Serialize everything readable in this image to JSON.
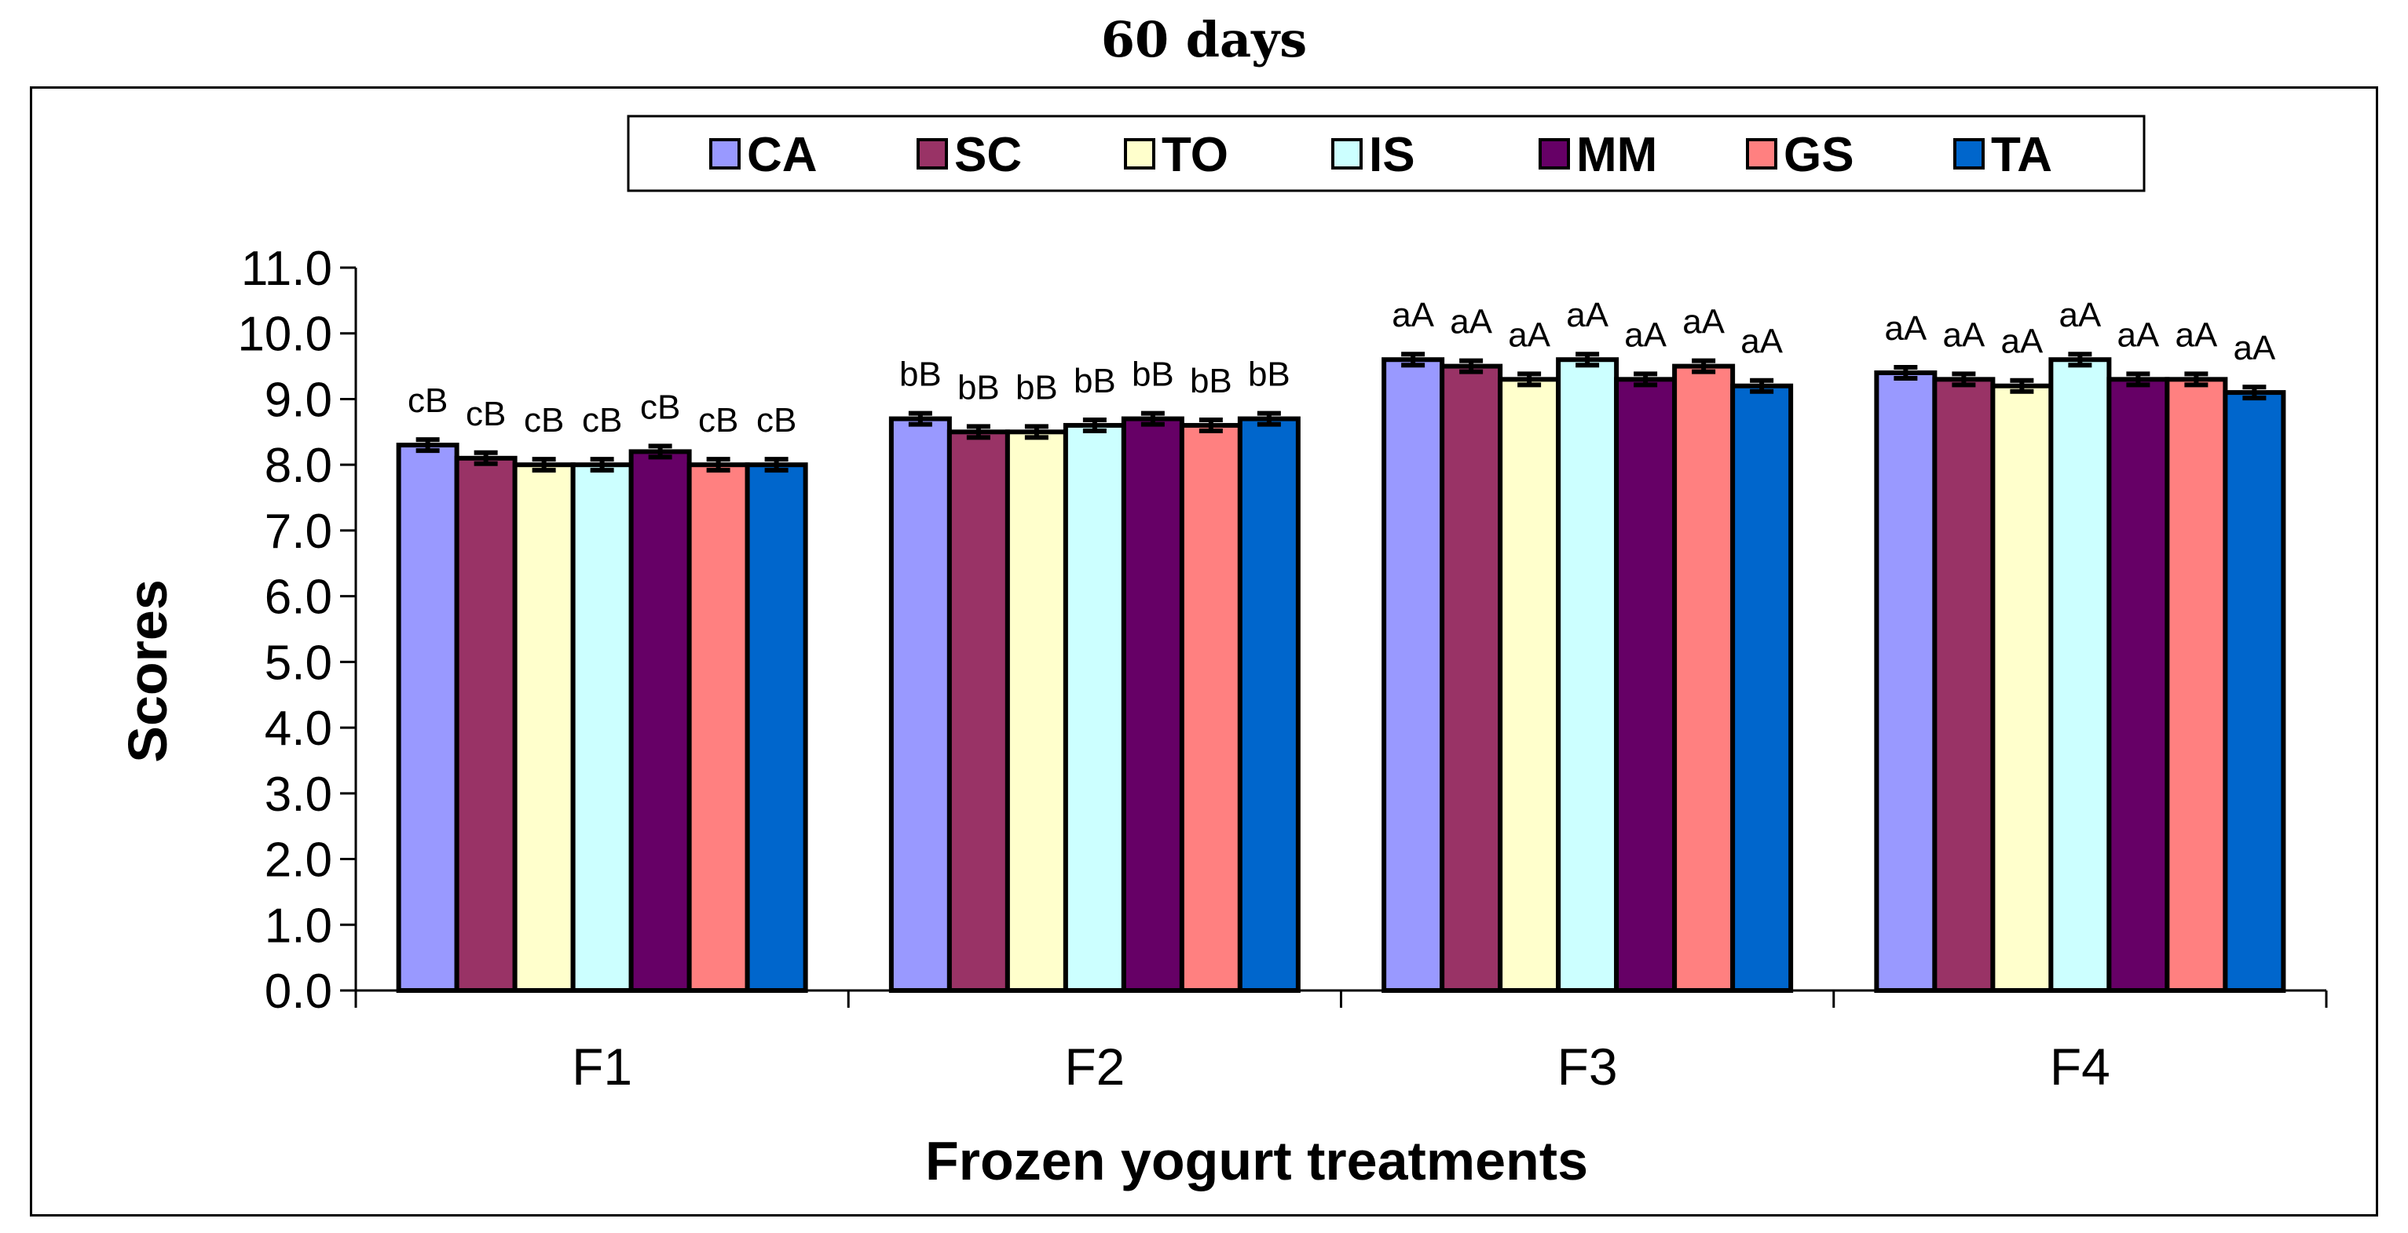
{
  "chart_data": {
    "type": "bar",
    "title": "60 days",
    "xlabel": "Frozen yogurt treatments",
    "ylabel": "Scores",
    "ylim": [
      0,
      11
    ],
    "yticks": [
      "0.0",
      "1.0",
      "2.0",
      "3.0",
      "4.0",
      "5.0",
      "6.0",
      "7.0",
      "8.0",
      "9.0",
      "10.0",
      "11.0"
    ],
    "categories": [
      "F1",
      "F2",
      "F3",
      "F4"
    ],
    "legend_position": "top",
    "series": [
      {
        "name": "CA",
        "color": "#9999ff",
        "values": [
          8.3,
          8.7,
          9.6,
          9.4
        ],
        "labels": [
          "cB",
          "bB",
          "aA",
          "aA"
        ]
      },
      {
        "name": "SC",
        "color": "#993366",
        "values": [
          8.1,
          8.5,
          9.5,
          9.3
        ],
        "labels": [
          "cB",
          "bB",
          "aA",
          "aA"
        ]
      },
      {
        "name": "TO",
        "color": "#ffffcc",
        "values": [
          8.0,
          8.5,
          9.3,
          9.2
        ],
        "labels": [
          "cB",
          "bB",
          "aA",
          "aA"
        ]
      },
      {
        "name": "IS",
        "color": "#ccffff",
        "values": [
          8.0,
          8.6,
          9.6,
          9.6
        ],
        "labels": [
          "cB",
          "bB",
          "aA",
          "aA"
        ]
      },
      {
        "name": "MM",
        "color": "#660066",
        "values": [
          8.2,
          8.7,
          9.3,
          9.3
        ],
        "labels": [
          "cB",
          "bB",
          "aA",
          "aA"
        ]
      },
      {
        "name": "GS",
        "color": "#ff8080",
        "values": [
          8.0,
          8.6,
          9.5,
          9.3
        ],
        "labels": [
          "cB",
          "bB",
          "aA",
          "aA"
        ]
      },
      {
        "name": "TA",
        "color": "#0066cc",
        "values": [
          8.0,
          8.7,
          9.2,
          9.1
        ],
        "labels": [
          "cB",
          "bB",
          "aA",
          "aA"
        ]
      }
    ]
  }
}
